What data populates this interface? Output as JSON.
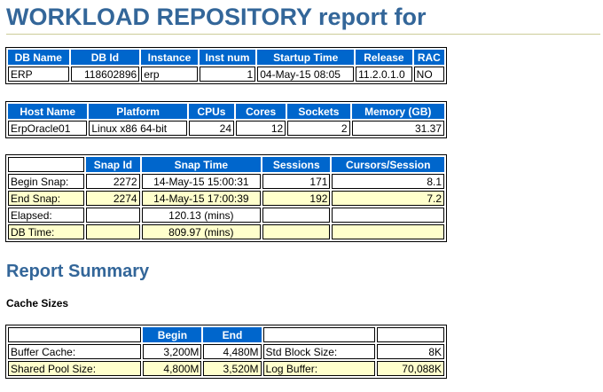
{
  "header": {
    "title": "WORKLOAD REPOSITORY report for"
  },
  "db_table": {
    "columns": [
      "DB Name",
      "DB Id",
      "Instance",
      "Inst num",
      "Startup Time",
      "Release",
      "RAC"
    ],
    "row": [
      "ERP",
      "118602896",
      "erp",
      "1",
      "04-May-15 08:05",
      "11.2.0.1.0",
      "NO"
    ]
  },
  "host_table": {
    "columns": [
      "Host Name",
      "Platform",
      "CPUs",
      "Cores",
      "Sockets",
      "Memory (GB)"
    ],
    "row": [
      "ErpOracle01",
      "Linux x86 64-bit",
      "24",
      "12",
      "2",
      "31.37"
    ]
  },
  "snap_table": {
    "columns": [
      "",
      "Snap Id",
      "Snap Time",
      "Sessions",
      "Cursors/Session"
    ],
    "rows": [
      [
        "Begin Snap:",
        "2272",
        "14-May-15 15:00:31",
        "171",
        "8.1"
      ],
      [
        "End Snap:",
        "2274",
        "14-May-15 17:00:39",
        "192",
        "7.2"
      ],
      [
        "Elapsed:",
        "",
        "120.13 (mins)",
        "",
        ""
      ],
      [
        "DB Time:",
        "",
        "809.97 (mins)",
        "",
        ""
      ]
    ]
  },
  "report_summary": {
    "title": "Report Summary"
  },
  "cache_sizes": {
    "title": "Cache Sizes",
    "columns": [
      "",
      "Begin",
      "End",
      "",
      ""
    ],
    "rows": [
      [
        "Buffer Cache:",
        "3,200M",
        "4,480M",
        "Std Block Size:",
        "8K"
      ],
      [
        "Shared Pool Size:",
        "4,800M",
        "3,520M",
        "Log Buffer:",
        "70,088K"
      ]
    ]
  }
}
